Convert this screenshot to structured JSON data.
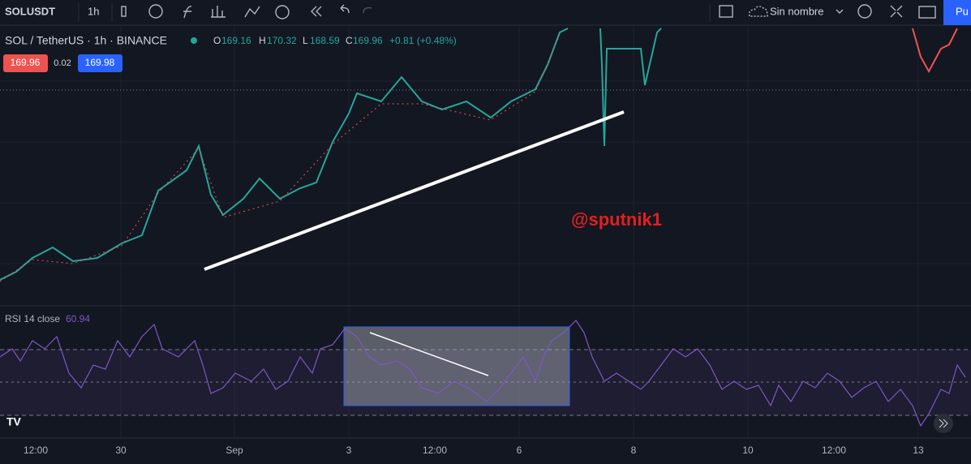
{
  "toolbar": {
    "symbol": "SOLUSDT",
    "interval": "1h",
    "layout_name": "Sin nombre",
    "publish": "Pu"
  },
  "legend": {
    "pair": "SOL / TetherUS · 1h · BINANCE",
    "open_label": "O",
    "open": 169.16,
    "high_label": "H",
    "high": 170.32,
    "low_label": "L",
    "low": 168.59,
    "close_label": "C",
    "close": 169.96,
    "change": "+0.81 (+0.48%)"
  },
  "quote": {
    "bid": 169.96,
    "spread": 0.02,
    "ask": 169.98
  },
  "annotation": "@sputnik1",
  "rsi": {
    "label": "RSI 14 close",
    "value": 60.94
  },
  "x_axis": [
    "12:00",
    "30",
    "Sep",
    "3",
    "12:00",
    "6",
    "8",
    "10",
    "12:00",
    "13"
  ]
}
